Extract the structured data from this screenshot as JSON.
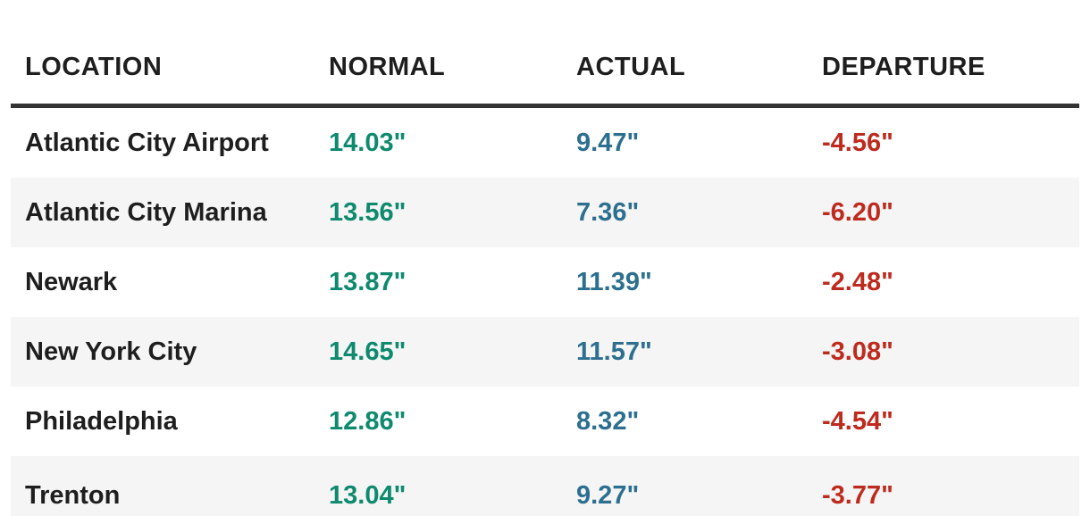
{
  "chart_data": {
    "type": "table",
    "columns": [
      "LOCATION",
      "NORMAL",
      "ACTUAL",
      "DEPARTURE"
    ],
    "rows": [
      [
        "Atlantic City Airport",
        "14.03\"",
        "9.47\"",
        "-4.56\""
      ],
      [
        "Atlantic City Marina",
        "13.56\"",
        "7.36\"",
        "-6.20\""
      ],
      [
        "Newark",
        "13.87\"",
        "11.39\"",
        "-2.48\""
      ],
      [
        "New York City",
        "14.65\"",
        "11.57\"",
        "-3.08\""
      ],
      [
        "Philadelphia",
        "12.86\"",
        "8.32\"",
        "-4.54\""
      ],
      [
        "Trenton",
        "13.04\"",
        "9.27\"",
        "-3.77\""
      ]
    ],
    "layout": {
      "striped_rows": true,
      "header_rule": true
    }
  },
  "colors": {
    "header_text": "#1e1e1e",
    "header_border": "#333333",
    "row_alt_bg": "#f5f5f5",
    "normal": "#0e8a6e",
    "actual": "#2d6f8f",
    "departure": "#bf2a1e"
  }
}
